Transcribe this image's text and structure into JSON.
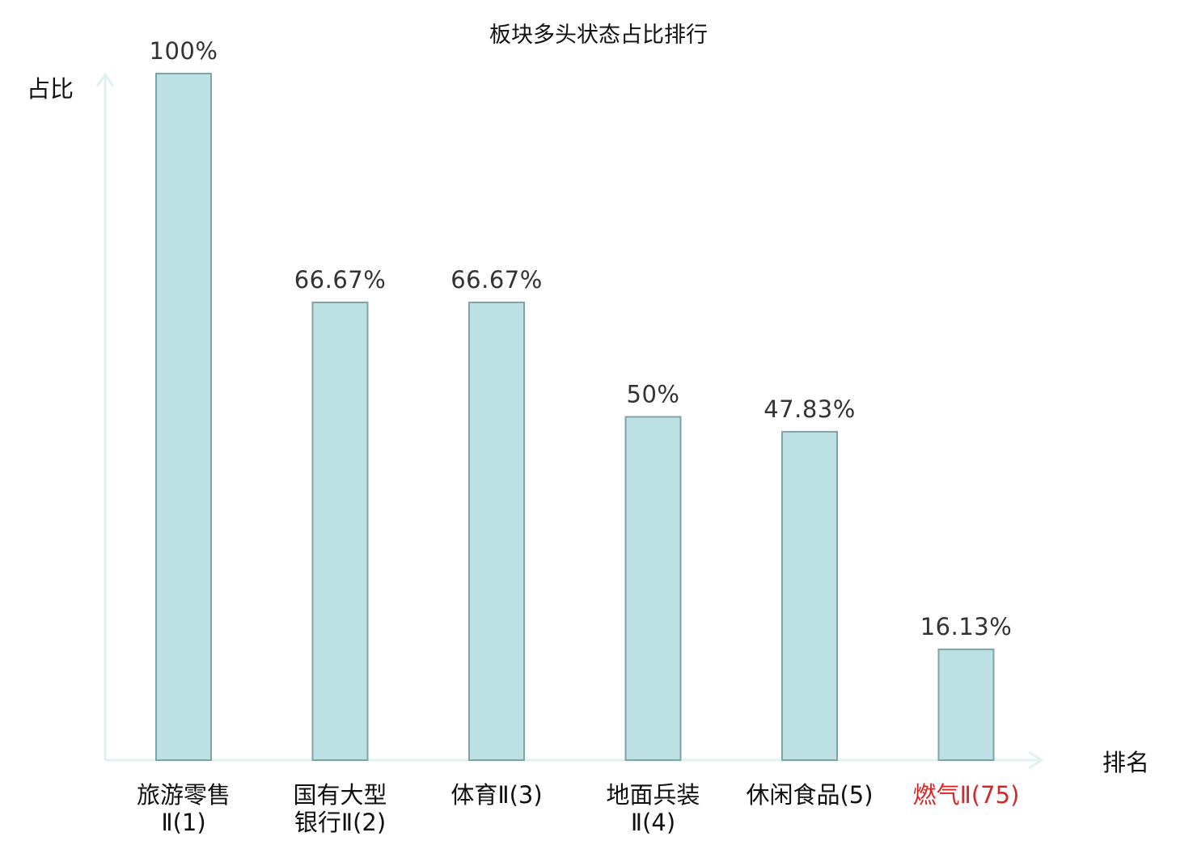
{
  "chart_data": {
    "type": "bar",
    "title": "板块多头状态占比排行",
    "ylabel": "占比",
    "xlabel": "排名",
    "ylim": [
      0,
      100
    ],
    "categories": [
      {
        "lines": [
          "旅游零售",
          "Ⅱ(1)"
        ],
        "highlight": false
      },
      {
        "lines": [
          "国有大型",
          "银行Ⅱ(2)"
        ],
        "highlight": false
      },
      {
        "lines": [
          "体育Ⅱ(3)"
        ],
        "highlight": false
      },
      {
        "lines": [
          "地面兵装",
          "Ⅱ(4)"
        ],
        "highlight": false
      },
      {
        "lines": [
          "休闲食品(5)"
        ],
        "highlight": false
      },
      {
        "lines": [
          "燃气Ⅱ(75)"
        ],
        "highlight": true
      }
    ],
    "values": [
      100,
      66.67,
      66.67,
      50,
      47.83,
      16.13
    ],
    "value_labels": [
      "100%",
      "66.67%",
      "66.67%",
      "50%",
      "47.83%",
      "16.13%"
    ],
    "grid": false,
    "legend": "none",
    "colors": {
      "bar_fill": "#bde0e3",
      "bar_stroke": "#7fa3a8",
      "axis": "#dff2ef",
      "highlight": "#d62728"
    }
  }
}
